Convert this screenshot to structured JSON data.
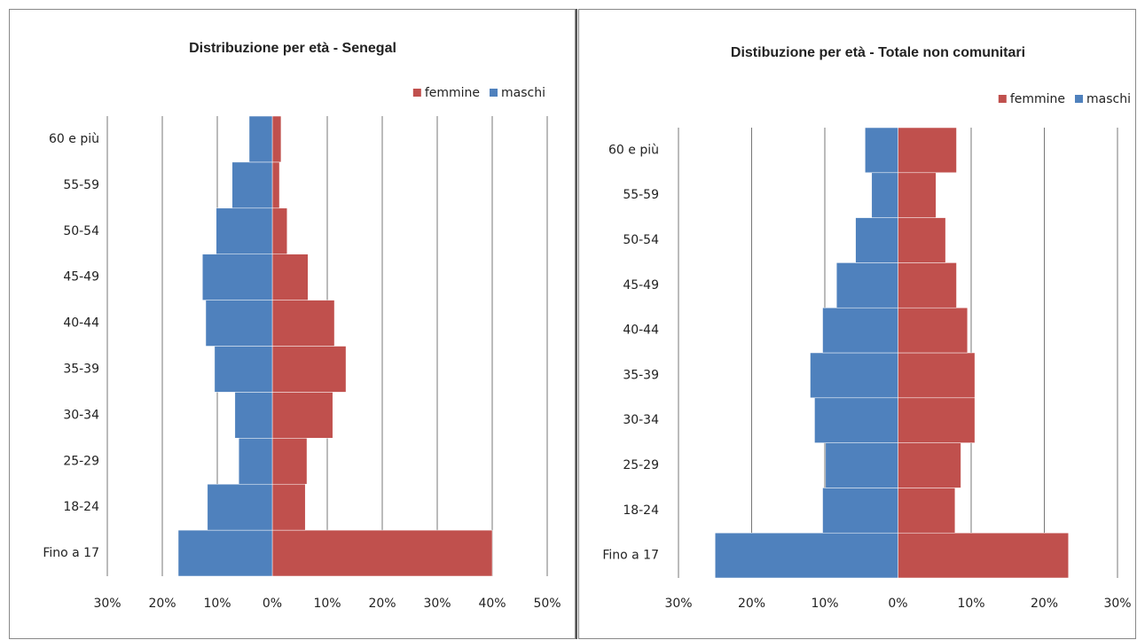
{
  "chart_data": [
    {
      "type": "bar",
      "orientation": "horizontal",
      "title": "Distribuzione per età - Senegal",
      "categories": [
        "Fino a 17",
        "18-24",
        "25-29",
        "30-34",
        "35-39",
        "40-44",
        "45-49",
        "50-54",
        "55-59",
        "60 e più"
      ],
      "series": [
        {
          "name": "femmine",
          "color": "#c0504d",
          "values": [
            40,
            6.0,
            6.3,
            11.0,
            13.4,
            11.3,
            6.5,
            2.7,
            1.3,
            1.6
          ]
        },
        {
          "name": "maschi",
          "color": "#4f81bd",
          "values": [
            -17.1,
            -11.8,
            -6.1,
            -6.8,
            -10.5,
            -12.1,
            -12.7,
            -10.2,
            -7.3,
            -4.2
          ]
        }
      ],
      "xlim": [
        -30,
        50
      ],
      "xticks": [
        {
          "value": -30,
          "label": "30%"
        },
        {
          "value": -20,
          "label": "20%"
        },
        {
          "value": -10,
          "label": "10%"
        },
        {
          "value": 0,
          "label": "0%"
        },
        {
          "value": 10,
          "label": "10%"
        },
        {
          "value": 20,
          "label": "20%"
        },
        {
          "value": 30,
          "label": "30%"
        },
        {
          "value": 40,
          "label": "40%"
        },
        {
          "value": 50,
          "label": "50%"
        }
      ],
      "grid": true,
      "legend": "top-right"
    },
    {
      "type": "bar",
      "orientation": "horizontal",
      "title": "Distibuzione per età - Totale non comunitari",
      "categories": [
        "Fino a 17",
        "18-24",
        "25-29",
        "30-34",
        "35-39",
        "40-44",
        "45-49",
        "50-54",
        "55-59",
        "60 e più"
      ],
      "series": [
        {
          "name": "femmine",
          "color": "#c0504d",
          "values": [
            23.3,
            7.8,
            8.6,
            10.5,
            10.5,
            9.5,
            8.0,
            6.5,
            5.2,
            8.0
          ]
        },
        {
          "name": "maschi",
          "color": "#4f81bd",
          "values": [
            -25.0,
            -10.3,
            -9.9,
            -11.4,
            -12.0,
            -10.3,
            -8.4,
            -5.8,
            -3.6,
            -4.5
          ]
        }
      ],
      "xlim": [
        -30,
        30
      ],
      "xticks": [
        {
          "value": -30,
          "label": "30%"
        },
        {
          "value": -20,
          "label": "20%"
        },
        {
          "value": -10,
          "label": "10%"
        },
        {
          "value": 0,
          "label": "0%"
        },
        {
          "value": 10,
          "label": "10%"
        },
        {
          "value": 20,
          "label": "20%"
        },
        {
          "value": 30,
          "label": "30%"
        }
      ],
      "grid": true,
      "legend": "top-right"
    }
  ]
}
